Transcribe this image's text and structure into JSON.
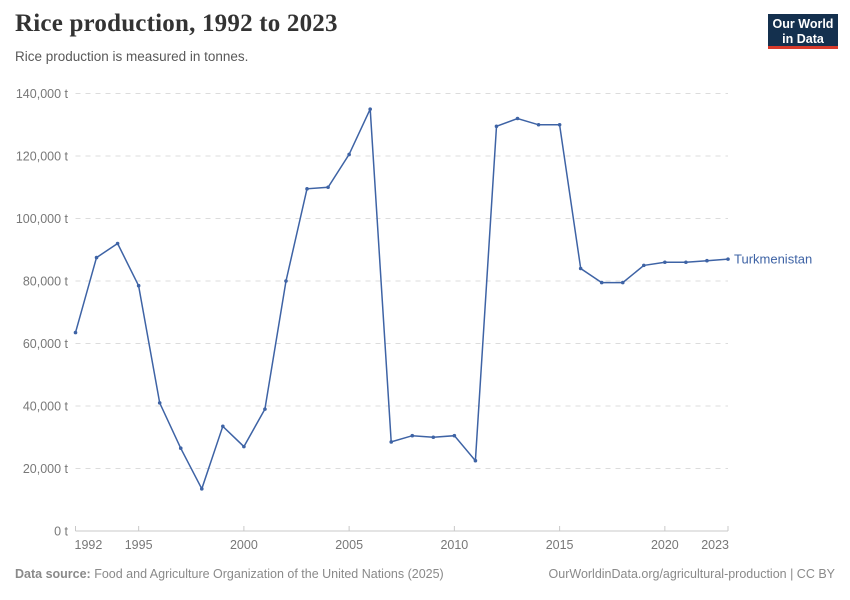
{
  "header": {
    "title": "Rice production, 1992 to 2023",
    "subtitle": "Rice production is measured in tonnes.",
    "logo_line1": "Our World",
    "logo_line2": "in Data"
  },
  "footer": {
    "source_label": "Data source:",
    "source_text": " Food and Agriculture Organization of the United Nations (2025)",
    "credit": "OurWorldinData.org/agricultural-production | CC BY"
  },
  "colors": {
    "line": "#3e63a5",
    "grid": "#dcdcdc",
    "axis": "#c8c8c8",
    "tick_text": "#787878",
    "logo_navy": "#14304e",
    "logo_red": "#d93a2b"
  },
  "chart_data": {
    "type": "line",
    "title": "Rice production, 1992 to 2023",
    "subtitle": "Rice production is measured in tonnes.",
    "xlabel": "",
    "ylabel": "",
    "unit": "t",
    "grid": "horizontal-dashed",
    "legend_position": "line-end-label",
    "xlim": [
      1992,
      2023
    ],
    "ylim": [
      0,
      140000
    ],
    "x": [
      1992,
      1993,
      1994,
      1995,
      1996,
      1997,
      1998,
      1999,
      2000,
      2001,
      2002,
      2003,
      2004,
      2005,
      2006,
      2007,
      2008,
      2009,
      2010,
      2011,
      2012,
      2013,
      2014,
      2015,
      2016,
      2017,
      2018,
      2019,
      2020,
      2021,
      2022,
      2023
    ],
    "series": [
      {
        "name": "Turkmenistan",
        "values": [
          63500,
          87500,
          92000,
          78500,
          41000,
          26500,
          13500,
          33500,
          27000,
          39000,
          80000,
          109500,
          110000,
          120500,
          135000,
          28500,
          30500,
          30000,
          30500,
          22500,
          129500,
          132000,
          130000,
          130000,
          84000,
          79500,
          79500,
          85000,
          86000,
          86000,
          86500,
          87000
        ]
      }
    ],
    "xticks": [
      {
        "value": 1992,
        "label": "1992"
      },
      {
        "value": 1995,
        "label": "1995"
      },
      {
        "value": 2000,
        "label": "2000"
      },
      {
        "value": 2005,
        "label": "2005"
      },
      {
        "value": 2010,
        "label": "2010"
      },
      {
        "value": 2015,
        "label": "2015"
      },
      {
        "value": 2020,
        "label": "2020"
      },
      {
        "value": 2023,
        "label": "2023"
      }
    ],
    "yticks": [
      {
        "value": 0,
        "label": "0 t"
      },
      {
        "value": 20000,
        "label": "20,000 t"
      },
      {
        "value": 40000,
        "label": "40,000 t"
      },
      {
        "value": 60000,
        "label": "60,000 t"
      },
      {
        "value": 80000,
        "label": "80,000 t"
      },
      {
        "value": 100000,
        "label": "100,000 t"
      },
      {
        "value": 120000,
        "label": "120,000 t"
      },
      {
        "value": 140000,
        "label": "140,000 t"
      }
    ]
  }
}
